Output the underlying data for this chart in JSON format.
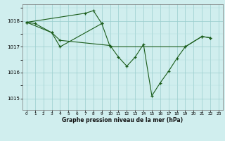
{
  "background_color": "#d0eeee",
  "line_color": "#1a5c1a",
  "xlabel": "Graphe pression niveau de la mer (hPa)",
  "yticks": [
    1015,
    1016,
    1017,
    1018
  ],
  "xticks": [
    0,
    1,
    2,
    3,
    4,
    5,
    6,
    7,
    8,
    9,
    10,
    11,
    12,
    13,
    14,
    15,
    16,
    17,
    18,
    19,
    20,
    21,
    22,
    23
  ],
  "xlim": [
    -0.5,
    23.5
  ],
  "ylim": [
    1014.55,
    1018.65
  ],
  "line1": {
    "x": [
      0,
      1,
      3,
      4,
      9,
      10,
      19,
      21,
      22
    ],
    "y": [
      1017.95,
      1017.9,
      1017.55,
      1017.0,
      1017.9,
      1017.0,
      1017.0,
      1017.4,
      1017.35
    ]
  },
  "line2": {
    "x": [
      0,
      7,
      8,
      9
    ],
    "y": [
      1017.95,
      1018.3,
      1018.4,
      1017.9
    ]
  },
  "line3": {
    "x": [
      0,
      3,
      4,
      10,
      11,
      12,
      13,
      14,
      15,
      16,
      17,
      18,
      19,
      21,
      22
    ],
    "y": [
      1017.95,
      1017.55,
      1017.25,
      1017.05,
      1016.6,
      1016.25,
      1016.6,
      1017.1,
      1015.1,
      1015.6,
      1016.05,
      1016.55,
      1017.0,
      1017.4,
      1017.35
    ]
  }
}
